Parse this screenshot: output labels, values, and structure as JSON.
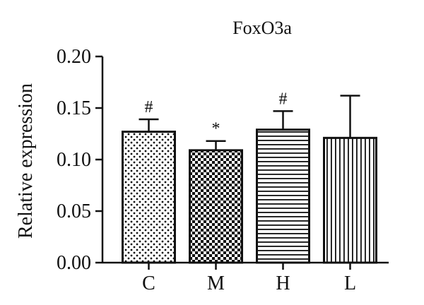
{
  "chart_data": {
    "type": "bar",
    "title": "FoxO3a",
    "xlabel": "",
    "ylabel": "Relative expression",
    "categories": [
      "C",
      "M",
      "H",
      "L"
    ],
    "values": [
      0.127,
      0.109,
      0.129,
      0.121
    ],
    "errors": [
      0.012,
      0.009,
      0.018,
      0.041
    ],
    "annotations": [
      "#",
      "*",
      "#",
      ""
    ],
    "patterns": [
      "dots",
      "checker",
      "horizontal-lines",
      "vertical-lines"
    ],
    "yticks": [
      "0.00",
      "0.05",
      "0.10",
      "0.15",
      "0.20"
    ],
    "ylim": [
      0,
      0.2
    ],
    "grid": false,
    "legend": "none"
  }
}
